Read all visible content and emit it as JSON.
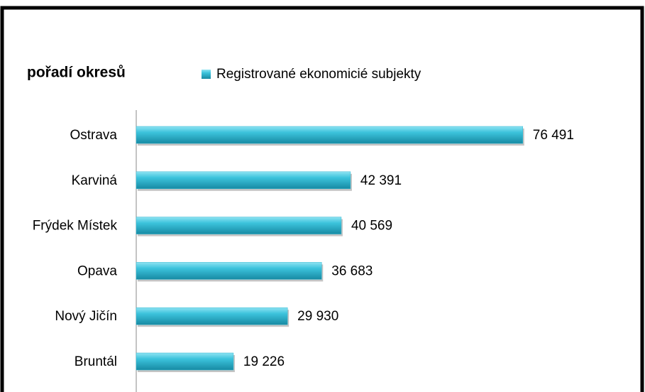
{
  "chart_data": {
    "type": "bar",
    "orientation": "horizontal",
    "title": "pořadí okresů",
    "categories": [
      "Ostrava",
      "Karviná",
      "Frýdek Místek",
      "Opava",
      "Nový Jičín",
      "Bruntál"
    ],
    "series": [
      {
        "name": "Registrované ekonomicié subjekty",
        "color": "#31b7d1",
        "values": [
          76491,
          42391,
          40569,
          36683,
          29930,
          19226
        ],
        "value_labels": [
          "76 491",
          "42 391",
          "40 569",
          "36 683",
          "29 930",
          "19 226"
        ]
      }
    ],
    "xlim": [
      0,
      90000
    ]
  }
}
